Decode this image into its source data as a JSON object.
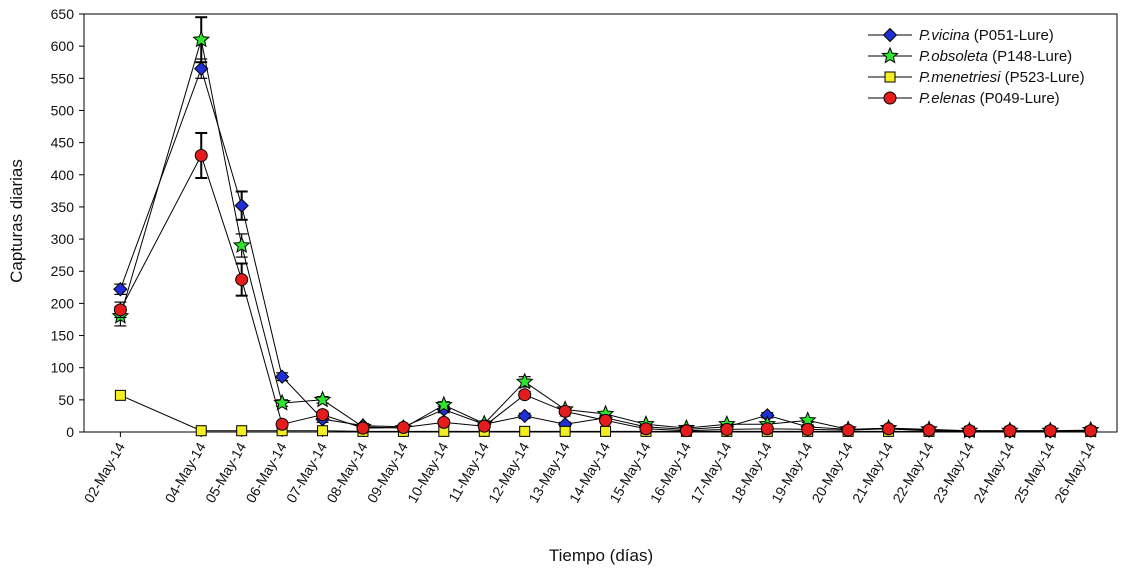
{
  "chart_data": {
    "type": "line",
    "title": "",
    "xlabel": "Tiempo (días)",
    "ylabel": "Capturas diarias",
    "ylim": [
      0,
      650
    ],
    "yticks": [
      0,
      50,
      100,
      150,
      200,
      250,
      300,
      350,
      400,
      450,
      500,
      550,
      600,
      650
    ],
    "grid": false,
    "legend_position": "top-right",
    "categories": [
      "02-May-14",
      "04-May-14",
      "05-May-14",
      "06-May-14",
      "07-May-14",
      "08-May-14",
      "09-May-14",
      "10-May-14",
      "11-May-14",
      "12-May-14",
      "13-May-14",
      "14-May-14",
      "15-May-14",
      "16-May-14",
      "17-May-14",
      "18-May-14",
      "19-May-14",
      "20-May-14",
      "21-May-14",
      "22-May-14",
      "23-May-14",
      "24-May-14",
      "25-May-14",
      "26-May-14"
    ],
    "x_day": [
      2,
      4,
      5,
      6,
      7,
      8,
      9,
      10,
      11,
      12,
      13,
      14,
      15,
      16,
      17,
      18,
      19,
      20,
      21,
      22,
      23,
      24,
      25,
      26
    ],
    "series": [
      {
        "species": "P.vicina",
        "lure": " (P051-Lure)",
        "marker": "diamond",
        "color": "#1f2fd6",
        "values": [
          222,
          565,
          352,
          86,
          20,
          10,
          8,
          35,
          12,
          25,
          12,
          22,
          8,
          4,
          8,
          26,
          8,
          4,
          5,
          2,
          1,
          1,
          1,
          2
        ],
        "errors": [
          8,
          15,
          22,
          6,
          5,
          3,
          3,
          5,
          3,
          4,
          3,
          4,
          3,
          2,
          3,
          4,
          3,
          2,
          2,
          1,
          1,
          1,
          1,
          1
        ]
      },
      {
        "species": "P.obsoleta",
        "lure": " (P148-Lure)",
        "marker": "star",
        "color": "#2ee62e",
        "values": [
          180,
          610,
          290,
          45,
          50,
          8,
          6,
          42,
          13,
          78,
          35,
          28,
          12,
          6,
          12,
          12,
          18,
          4,
          6,
          4,
          2,
          2,
          2,
          3
        ],
        "errors": [
          15,
          35,
          18,
          5,
          5,
          2,
          2,
          5,
          2,
          8,
          4,
          3,
          2,
          2,
          2,
          2,
          3,
          1,
          1,
          1,
          1,
          1,
          1,
          1
        ]
      },
      {
        "species": "P.menetriesi",
        "lure": " (P523-Lure)",
        "marker": "square",
        "color": "#f2ee1f",
        "values": [
          57,
          2,
          2,
          2,
          2,
          1,
          1,
          1,
          1,
          1,
          1,
          1,
          1,
          1,
          1,
          1,
          1,
          1,
          1,
          1,
          1,
          1,
          1,
          1
        ],
        "errors": [
          0,
          0,
          0,
          0,
          0,
          0,
          0,
          0,
          0,
          0,
          0,
          0,
          0,
          0,
          0,
          0,
          0,
          0,
          0,
          0,
          0,
          0,
          0,
          0
        ]
      },
      {
        "species": "P.elenas",
        "lure": " (P049-Lure)",
        "marker": "circle",
        "color": "#e51c1c",
        "values": [
          190,
          430,
          237,
          12,
          27,
          6,
          7,
          15,
          9,
          58,
          32,
          18,
          5,
          2,
          4,
          5,
          4,
          3,
          5,
          3,
          2,
          2,
          2,
          2
        ],
        "errors": [
          12,
          35,
          25,
          3,
          5,
          2,
          2,
          3,
          2,
          5,
          4,
          3,
          2,
          1,
          2,
          2,
          2,
          1,
          1,
          1,
          1,
          1,
          1,
          1
        ]
      }
    ]
  }
}
